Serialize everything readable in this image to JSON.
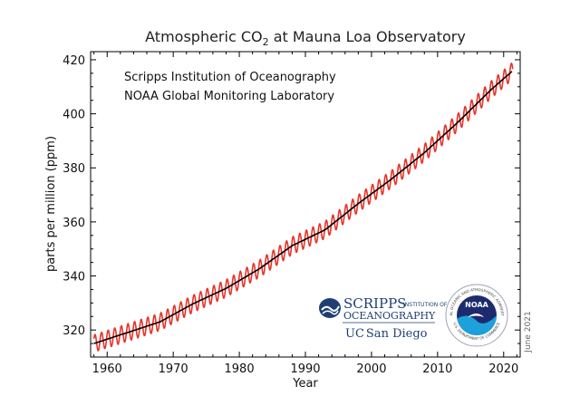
{
  "chart_data": {
    "type": "line",
    "title": "Atmospheric CO2 at Mauna Loa Observatory",
    "title_main": "Atmospheric CO",
    "title_sub": "2",
    "title_rest": " at Mauna Loa Observatory",
    "xlabel": "Year",
    "ylabel": "parts per million (ppm)",
    "xlim": [
      1957.5,
      2022.5
    ],
    "ylim": [
      310,
      423
    ],
    "xticks": [
      1960,
      1970,
      1980,
      1990,
      2000,
      2010,
      2020
    ],
    "yticks": [
      320,
      340,
      360,
      380,
      400,
      420
    ],
    "grid": false,
    "annotations": [
      "Scripps Institution of Oceanography",
      "NOAA Global Monitoring Laboratory"
    ],
    "date_note": "June 2021",
    "series": [
      {
        "color": "#e8332a",
        "style": "seasonal",
        "x": [
          1958,
          1963,
          1968,
          1973,
          1978,
          1983,
          1988,
          1993,
          1998,
          2003,
          2008,
          2013,
          2018,
          2021.4
        ],
        "y": [
          315.0,
          319.0,
          323.0,
          329.7,
          335.4,
          342.6,
          351.2,
          357.1,
          366.8,
          375.8,
          385.6,
          396.7,
          408.7,
          416.0
        ],
        "amplitude": 3.2
      },
      {
        "color": "#000000",
        "style": "trend",
        "x": [
          1958,
          1963,
          1968,
          1973,
          1978,
          1983,
          1988,
          1993,
          1998,
          2003,
          2008,
          2013,
          2018,
          2021.4
        ],
        "y": [
          315.0,
          319.0,
          323.0,
          329.7,
          335.4,
          342.6,
          351.2,
          357.1,
          366.8,
          375.8,
          385.6,
          396.7,
          408.7,
          416.0
        ]
      }
    ]
  },
  "logos": {
    "scripps_main": "SCRIPPS",
    "scripps_small": "INSTITUTION OF",
    "scripps_sub": "OCEANOGRAPHY",
    "ucsd_uc": "UC",
    "ucsd_rest": "San Diego",
    "noaa": "NOAA",
    "noaa_ring_top": "NATIONAL OCEANIC AND ATMOSPHERIC ADMINISTRATION",
    "noaa_ring_bottom": "U.S. DEPARTMENT OF COMMERCE",
    "colors": {
      "scripps": "#1f3f73",
      "ucsd": "#1f3f73",
      "noaa_dark": "#1d2b6e",
      "noaa_light": "#1ea0da"
    }
  }
}
